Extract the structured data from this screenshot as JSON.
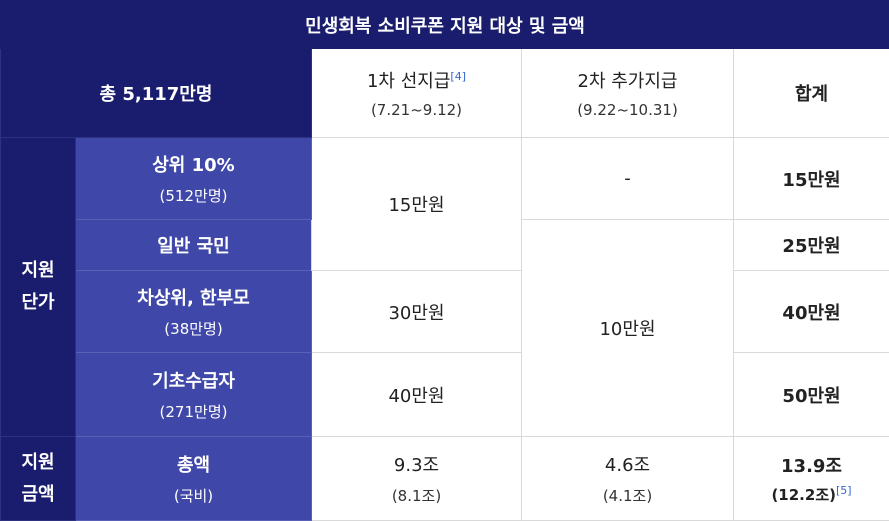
{
  "title": "민생회복 소비쿠폰 지원 대상 및 금액",
  "header": {
    "total_people": "총 5,117만명",
    "phase1_label": "1차 선지급",
    "phase1_ref": "[4]",
    "phase1_period": "(7.21~9.12)",
    "phase2_label": "2차 추가지급",
    "phase2_period": "(9.22~10.31)",
    "sum_label": "합계"
  },
  "group_unit": "지원 단가",
  "group_amount": "지원 금액",
  "rows": [
    {
      "name": "상위 10%",
      "sub": "(512만명)",
      "phase1": "15만원",
      "phase2": "-",
      "total": "15만원"
    },
    {
      "name": "일반 국민",
      "sub": "",
      "phase1": "",
      "phase2": "10만원",
      "total": "25만원"
    },
    {
      "name": "차상위, 한부모",
      "sub": "(38만명)",
      "phase1": "30만원",
      "phase2": "",
      "total": "40만원"
    },
    {
      "name": "기초수급자",
      "sub": "(271만명)",
      "phase1": "40만원",
      "phase2": "",
      "total": "50만원"
    }
  ],
  "amount_row": {
    "name": "총액",
    "sub": "(국비)",
    "phase1": "9.3조",
    "phase1_sub": "(8.1조)",
    "phase2": "4.6조",
    "phase2_sub": "(4.1조)",
    "total": "13.9조",
    "total_sub": "(12.2조)",
    "total_ref": "[5]"
  },
  "colors": {
    "dark_navy": "#1a1d6e",
    "mid_blue": "#3f47a8",
    "link_blue": "#3366cc"
  }
}
